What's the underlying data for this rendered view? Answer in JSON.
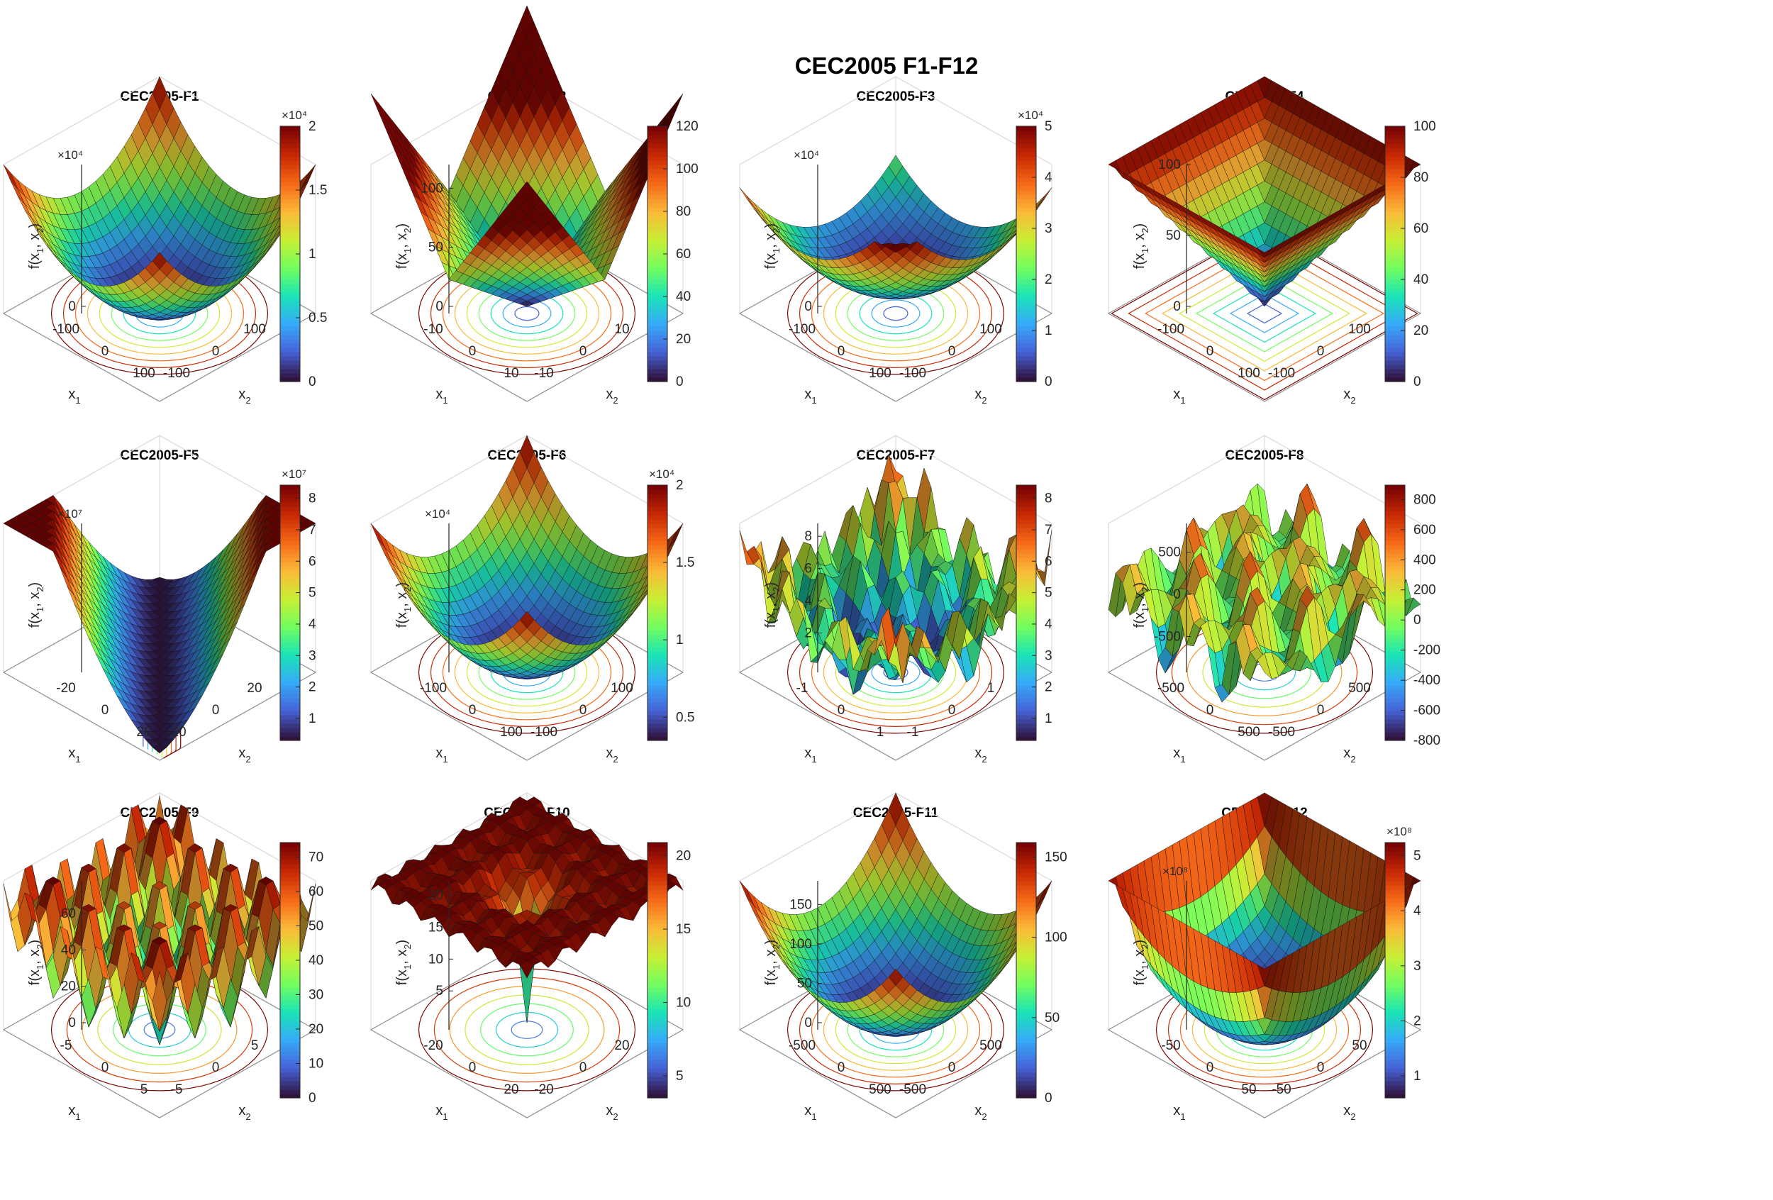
{
  "figure": {
    "title": "CEC2005 F1-F12"
  },
  "colors": {
    "colormap": [
      "#30123b",
      "#4662d7",
      "#36aaf9",
      "#1ae4b6",
      "#72fe5e",
      "#c8ef34",
      "#faba39",
      "#f66b19",
      "#ca2a04",
      "#7a0403"
    ]
  },
  "chart_data": [
    {
      "type": "surface",
      "id": "F1",
      "title": "CEC2005-F1",
      "shape": "bowl",
      "xlabel": "x1",
      "ylabel": "x2",
      "zlabel": "f(x1, x2)",
      "xticks": [
        "-100",
        "0",
        "100"
      ],
      "yticks": [
        "-100",
        "0",
        "100"
      ],
      "zticks": [
        "0",
        "0.5",
        "1",
        "1.5",
        "2"
      ],
      "z_exponent": "×10⁴",
      "zlim": [
        0,
        20000
      ],
      "colorbar_ticks": [
        "0",
        "0.5",
        "1",
        "1.5",
        "2"
      ],
      "colorbar_exponent": "×10⁴"
    },
    {
      "type": "surface",
      "id": "F2",
      "title": "CEC2005-F2",
      "shape": "spikes",
      "xlabel": "x1",
      "ylabel": "x2",
      "zlabel": "f(x1, x2)",
      "xticks": [
        "-10",
        "0",
        "10"
      ],
      "yticks": [
        "-10",
        "0",
        "10"
      ],
      "zticks": [
        "0",
        "50",
        "100"
      ],
      "z_exponent": "",
      "zlim": [
        0,
        120
      ],
      "colorbar_ticks": [
        "0",
        "20",
        "40",
        "60",
        "80",
        "100",
        "120"
      ],
      "colorbar_exponent": ""
    },
    {
      "type": "surface",
      "id": "F3",
      "title": "CEC2005-F3",
      "shape": "tilted",
      "xlabel": "x1",
      "ylabel": "x2",
      "zlabel": "f(x1, x2)",
      "xticks": [
        "-100",
        "0",
        "100"
      ],
      "yticks": [
        "-100",
        "0",
        "100"
      ],
      "zticks": [
        "0",
        "1",
        "2",
        "3",
        "4",
        "5"
      ],
      "z_exponent": "×10⁴",
      "zlim": [
        0,
        50000
      ],
      "colorbar_ticks": [
        "0",
        "1",
        "2",
        "3",
        "4",
        "5"
      ],
      "colorbar_exponent": "×10⁴"
    },
    {
      "type": "surface",
      "id": "F4",
      "title": "CEC2005-F4",
      "shape": "pyramid",
      "xlabel": "x1",
      "ylabel": "x2",
      "zlabel": "f(x1, x2)",
      "xticks": [
        "-100",
        "0",
        "100"
      ],
      "yticks": [
        "-100",
        "0",
        "100"
      ],
      "zticks": [
        "0",
        "50",
        "100"
      ],
      "z_exponent": "",
      "zlim": [
        0,
        100
      ],
      "colorbar_ticks": [
        "0",
        "20",
        "40",
        "60",
        "80",
        "100"
      ],
      "colorbar_exponent": ""
    },
    {
      "type": "surface",
      "id": "F5",
      "title": "CEC2005-F5",
      "shape": "valley",
      "xlabel": "x1",
      "ylabel": "x2",
      "zlabel": "f(x1, x2)",
      "xticks": [
        "-20",
        "0",
        "20"
      ],
      "yticks": [
        "-20",
        "0",
        "20"
      ],
      "zticks": [
        "2",
        "4",
        "6",
        "8"
      ],
      "z_exponent": "×10⁷",
      "zlim": [
        0,
        85000000
      ],
      "colorbar_ticks": [
        "1",
        "2",
        "3",
        "4",
        "5",
        "6",
        "7",
        "8"
      ],
      "colorbar_exponent": "×10⁷"
    },
    {
      "type": "surface",
      "id": "F6",
      "title": "CEC2005-F6",
      "shape": "bowl",
      "xlabel": "x1",
      "ylabel": "x2",
      "zlabel": "f(x1, x2)",
      "xticks": [
        "-100",
        "0",
        "100"
      ],
      "yticks": [
        "-100",
        "0",
        "100"
      ],
      "zticks": [
        "0.5",
        "1",
        "1.5",
        "2"
      ],
      "z_exponent": "×10⁴",
      "zlim": [
        0,
        20000
      ],
      "colorbar_ticks": [
        "0.5",
        "1",
        "1.5",
        "2"
      ],
      "colorbar_exponent": "×10⁴"
    },
    {
      "type": "surface",
      "id": "F7",
      "title": "CEC2005-F7",
      "shape": "noisy",
      "xlabel": "x1",
      "ylabel": "x2",
      "zlabel": "f(x1, x2)",
      "xticks": [
        "-1",
        "0",
        "1"
      ],
      "yticks": [
        "-1",
        "0",
        "1"
      ],
      "zticks": [
        "2",
        "4",
        "6",
        "8"
      ],
      "z_exponent": "",
      "zlim": [
        0,
        8.8
      ],
      "colorbar_ticks": [
        "1",
        "2",
        "3",
        "4",
        "5",
        "6",
        "7",
        "8"
      ],
      "colorbar_exponent": ""
    },
    {
      "type": "surface",
      "id": "F8",
      "title": "CEC2005-F8",
      "shape": "schwefel",
      "xlabel": "x1",
      "ylabel": "x2",
      "zlabel": "f(x1, x2)",
      "xticks": [
        "-500",
        "0",
        "500"
      ],
      "yticks": [
        "-500",
        "0",
        "500"
      ],
      "zticks": [
        "-500",
        "0",
        "500"
      ],
      "z_exponent": "",
      "zlim": [
        -840,
        840
      ],
      "colorbar_ticks": [
        "-800",
        "-600",
        "-400",
        "-200",
        "0",
        "200",
        "400",
        "600",
        "800"
      ],
      "colorbar_exponent": ""
    },
    {
      "type": "surface",
      "id": "F9",
      "title": "CEC2005-F9",
      "shape": "rastrigin",
      "xlabel": "x1",
      "ylabel": "x2",
      "zlabel": "f(x1, x2)",
      "xticks": [
        "-5",
        "0",
        "5"
      ],
      "yticks": [
        "-5",
        "0",
        "5"
      ],
      "zticks": [
        "0",
        "20",
        "40",
        "60"
      ],
      "z_exponent": "",
      "zlim": [
        0,
        78
      ],
      "colorbar_ticks": [
        "0",
        "10",
        "20",
        "30",
        "40",
        "50",
        "60",
        "70"
      ],
      "colorbar_exponent": ""
    },
    {
      "type": "surface",
      "id": "F10",
      "title": "CEC2005-F10",
      "shape": "ackley",
      "xlabel": "x1",
      "ylabel": "x2",
      "zlabel": "f(x1, x2)",
      "xticks": [
        "-20",
        "0",
        "20"
      ],
      "yticks": [
        "-20",
        "0",
        "20"
      ],
      "zticks": [
        "5",
        "10",
        "15",
        "20"
      ],
      "z_exponent": "",
      "zlim": [
        0,
        22.3
      ],
      "colorbar_ticks": [
        "5",
        "10",
        "15",
        "20"
      ],
      "colorbar_exponent": ""
    },
    {
      "type": "surface",
      "id": "F11",
      "title": "CEC2005-F11",
      "shape": "bowl",
      "xlabel": "x1",
      "ylabel": "x2",
      "zlabel": "f(x1, x2)",
      "xticks": [
        "-500",
        "0",
        "500"
      ],
      "yticks": [
        "-500",
        "0",
        "500"
      ],
      "zticks": [
        "0",
        "50",
        "100",
        "150"
      ],
      "z_exponent": "",
      "zlim": [
        0,
        180
      ],
      "colorbar_ticks": [
        "0",
        "50",
        "100",
        "150"
      ],
      "colorbar_exponent": ""
    },
    {
      "type": "surface",
      "id": "F12",
      "title": "CEC2005-F12",
      "shape": "steep",
      "xlabel": "x1",
      "ylabel": "x2",
      "zlabel": "f(x1, x2)",
      "xticks": [
        "-50",
        "0",
        "50"
      ],
      "yticks": [
        "-50",
        "0",
        "50"
      ],
      "zticks": [
        "1",
        "2",
        "3",
        "4",
        "5"
      ],
      "z_exponent": "×10⁸",
      "zlim": [
        0,
        520000000
      ],
      "colorbar_ticks": [
        "1",
        "2",
        "3",
        "4",
        "5"
      ],
      "colorbar_exponent": "×10⁸"
    }
  ]
}
